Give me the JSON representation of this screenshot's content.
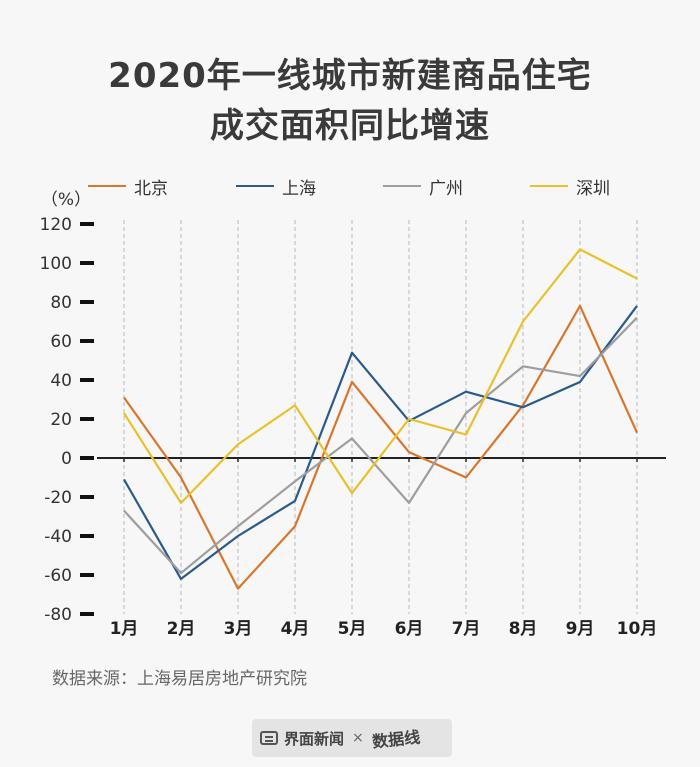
{
  "chart_data": {
    "type": "line",
    "title_line1": "2020年一线城市新建商品住宅",
    "title_line2": "成交面积同比增速",
    "ylabel": "（%）",
    "ylim": [
      -80,
      120
    ],
    "yticks": [
      120,
      100,
      80,
      60,
      40,
      20,
      0,
      -20,
      -40,
      -60,
      -80
    ],
    "categories": [
      "1月",
      "2月",
      "3月",
      "4月",
      "5月",
      "6月",
      "7月",
      "8月",
      "9月",
      "10月"
    ],
    "grid": "vertical dashed",
    "legend_position": "top",
    "series": [
      {
        "name": "北京",
        "color": "#d9762e",
        "values": [
          31,
          -10,
          -67,
          -35,
          39,
          3,
          -10,
          27,
          78,
          13
        ]
      },
      {
        "name": "上海",
        "color": "#2b5b8a",
        "values": [
          -11,
          -62,
          -40,
          -22,
          54,
          19,
          34,
          26,
          39,
          78
        ]
      },
      {
        "name": "广州",
        "color": "#9e9e9e",
        "values": [
          -27,
          -59,
          -35,
          -12,
          10,
          -23,
          23,
          47,
          42,
          72
        ]
      },
      {
        "name": "深圳",
        "color": "#e8c12b",
        "values": [
          23,
          -23,
          7,
          27,
          -18,
          20,
          12,
          70,
          107,
          92
        ]
      }
    ]
  },
  "source": "数据来源：上海易居房地产研究院",
  "footer": {
    "brand": "界面新闻",
    "separator": "×",
    "partner": "数据线"
  }
}
